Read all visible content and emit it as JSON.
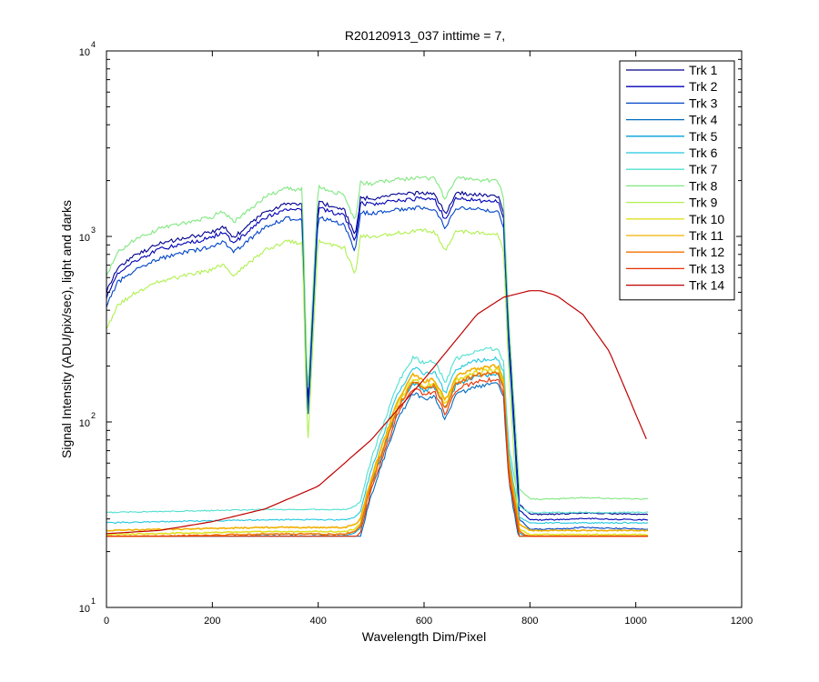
{
  "chart_data": {
    "type": "line",
    "title": "R20120913_037 inttime = 7,",
    "xlabel": "Wavelength Dim/Pixel",
    "ylabel": "Signal Intensity (ADU/pix/sec), light and darks",
    "xlim": [
      0,
      1200
    ],
    "ylim": [
      10,
      10000
    ],
    "yscale": "log",
    "grid": false,
    "legend_position": "top-right",
    "x_ticks": [
      0,
      200,
      400,
      600,
      800,
      1000,
      1200
    ],
    "x_tick_labels": [
      "0",
      "200",
      "400",
      "600",
      "800",
      "1000",
      "1200"
    ],
    "y_ticks": [
      {
        "value": 10,
        "base": "10",
        "exp": "1"
      },
      {
        "value": 100,
        "base": "10",
        "exp": "2"
      },
      {
        "value": 1000,
        "base": "10",
        "exp": "3"
      },
      {
        "value": 10000,
        "base": "10",
        "exp": "4"
      }
    ],
    "series": [
      {
        "name": "Trk 1",
        "color": "#00008f",
        "kind": "high",
        "scale": 1.2,
        "x": [
          0,
          20,
          50,
          100,
          150,
          200,
          220,
          240,
          300,
          340,
          370,
          380,
          400,
          450,
          470,
          480,
          500,
          550,
          580,
          600,
          620,
          640,
          660,
          700,
          740,
          750,
          760,
          780,
          800,
          850,
          900,
          1000,
          1025
        ],
        "y": [
          420,
          560,
          650,
          760,
          820,
          880,
          950,
          820,
          1130,
          1250,
          1230,
          95,
          1280,
          1150,
          830,
          1350,
          1330,
          1400,
          1420,
          1430,
          1410,
          1100,
          1430,
          1400,
          1370,
          1100,
          250,
          30,
          26.5,
          26.5,
          27,
          26.5,
          26.5
        ]
      },
      {
        "name": "Trk 2",
        "color": "#0000b8",
        "kind": "high",
        "scale": 1.12,
        "x": [
          0,
          20,
          50,
          100,
          150,
          200,
          220,
          240,
          300,
          340,
          370,
          380,
          400,
          450,
          470,
          480,
          500,
          550,
          580,
          600,
          620,
          640,
          660,
          700,
          740,
          750,
          760,
          780,
          800,
          850,
          900,
          1000,
          1025
        ],
        "y": [
          420,
          560,
          650,
          760,
          820,
          880,
          950,
          820,
          1130,
          1250,
          1230,
          95,
          1280,
          1150,
          830,
          1350,
          1330,
          1400,
          1420,
          1430,
          1410,
          1100,
          1430,
          1400,
          1370,
          1100,
          250,
          30,
          26.5,
          26.5,
          27,
          26.5,
          26.5
        ]
      },
      {
        "name": "Trk 3",
        "color": "#0044c8",
        "kind": "high",
        "scale": 1.0,
        "x": [
          0,
          20,
          50,
          100,
          150,
          200,
          220,
          240,
          300,
          340,
          370,
          380,
          400,
          450,
          470,
          480,
          500,
          550,
          580,
          600,
          620,
          640,
          660,
          700,
          740,
          750,
          760,
          780,
          800,
          850,
          900,
          1000,
          1025
        ],
        "y": [
          420,
          560,
          650,
          760,
          820,
          880,
          950,
          820,
          1130,
          1250,
          1230,
          95,
          1280,
          1150,
          830,
          1350,
          1330,
          1400,
          1420,
          1430,
          1410,
          1100,
          1430,
          1400,
          1370,
          1100,
          250,
          30,
          26.5,
          26.5,
          27,
          26.5,
          26.5
        ]
      },
      {
        "name": "Trk 4",
        "color": "#006cc0",
        "kind": "band",
        "scale": 0.8,
        "x": [
          0,
          300,
          380,
          450,
          470,
          480,
          500,
          550,
          580,
          600,
          620,
          640,
          660,
          700,
          740,
          750,
          760,
          780,
          800,
          1025
        ],
        "y": [
          26,
          27,
          27,
          27,
          28,
          30,
          50,
          130,
          180,
          165,
          170,
          130,
          175,
          195,
          200,
          170,
          60,
          28,
          26,
          26
        ]
      },
      {
        "name": "Trk 5",
        "color": "#00a0d8",
        "kind": "band",
        "scale": 0.9,
        "x": [
          0,
          300,
          380,
          450,
          470,
          480,
          500,
          550,
          580,
          600,
          620,
          640,
          660,
          700,
          740,
          750,
          760,
          780,
          800,
          1025
        ],
        "y": [
          26,
          27,
          27,
          27,
          28,
          30,
          50,
          130,
          180,
          165,
          170,
          130,
          175,
          195,
          200,
          170,
          60,
          28,
          26,
          26
        ]
      },
      {
        "name": "Trk 6",
        "color": "#20c8e0",
        "kind": "band",
        "scale": 1.1,
        "x": [
          0,
          300,
          380,
          450,
          470,
          480,
          500,
          550,
          580,
          600,
          620,
          640,
          660,
          700,
          740,
          750,
          760,
          780,
          800,
          1025
        ],
        "y": [
          26,
          27,
          27,
          27,
          28,
          30,
          50,
          130,
          180,
          165,
          170,
          130,
          175,
          195,
          200,
          170,
          60,
          28,
          26,
          26
        ]
      },
      {
        "name": "Trk 7",
        "color": "#50e0d0",
        "kind": "band",
        "scale": 1.25,
        "x": [
          0,
          300,
          380,
          450,
          470,
          480,
          500,
          550,
          580,
          600,
          620,
          640,
          660,
          700,
          740,
          750,
          760,
          780,
          800,
          1025
        ],
        "y": [
          26,
          27,
          27,
          27,
          28,
          30,
          50,
          130,
          180,
          165,
          170,
          130,
          175,
          195,
          200,
          170,
          60,
          28,
          26,
          26
        ]
      },
      {
        "name": "Trk 8",
        "color": "#80e880",
        "kind": "high",
        "scale": 1.45,
        "x": [
          0,
          20,
          50,
          100,
          150,
          200,
          220,
          240,
          300,
          340,
          370,
          380,
          400,
          450,
          470,
          480,
          500,
          550,
          580,
          600,
          620,
          640,
          660,
          700,
          740,
          750,
          760,
          780,
          800,
          850,
          900,
          1000,
          1025
        ],
        "y": [
          420,
          560,
          650,
          760,
          820,
          880,
          950,
          820,
          1130,
          1250,
          1230,
          95,
          1280,
          1150,
          830,
          1350,
          1330,
          1400,
          1420,
          1430,
          1410,
          1100,
          1430,
          1400,
          1370,
          1100,
          250,
          30,
          26.5,
          26.5,
          27,
          26.5,
          26.5
        ]
      },
      {
        "name": "Trk 9",
        "color": "#b0f050",
        "kind": "high",
        "scale": 0.75,
        "x": [
          0,
          20,
          50,
          100,
          150,
          200,
          220,
          240,
          300,
          340,
          370,
          380,
          400,
          450,
          470,
          480,
          500,
          550,
          580,
          600,
          620,
          640,
          660,
          700,
          740,
          750,
          760,
          780,
          800,
          850,
          900,
          1000,
          1025
        ],
        "y": [
          420,
          560,
          650,
          760,
          820,
          880,
          950,
          820,
          1130,
          1250,
          1230,
          95,
          1280,
          1150,
          830,
          1350,
          1330,
          1400,
          1420,
          1430,
          1410,
          1100,
          1430,
          1400,
          1370,
          1100,
          250,
          30,
          26.5,
          26.5,
          27,
          26.5,
          26.5
        ]
      },
      {
        "name": "Trk 10",
        "color": "#e0e020",
        "kind": "band",
        "scale": 0.95,
        "x": [
          0,
          300,
          380,
          450,
          470,
          480,
          500,
          550,
          580,
          600,
          620,
          640,
          660,
          700,
          740,
          750,
          760,
          780,
          800,
          1025
        ],
        "y": [
          26,
          27,
          27,
          27,
          28,
          30,
          50,
          130,
          180,
          165,
          170,
          130,
          175,
          195,
          200,
          170,
          60,
          28,
          26,
          26
        ]
      },
      {
        "name": "Trk 11",
        "color": "#f0b000",
        "kind": "band",
        "scale": 1.0,
        "x": [
          0,
          300,
          380,
          450,
          470,
          480,
          500,
          550,
          580,
          600,
          620,
          640,
          660,
          700,
          740,
          750,
          760,
          780,
          800,
          1025
        ],
        "y": [
          26,
          27,
          27,
          27,
          28,
          30,
          50,
          130,
          180,
          165,
          170,
          130,
          175,
          195,
          200,
          170,
          60,
          28,
          26,
          26
        ]
      },
      {
        "name": "Trk 12",
        "color": "#f07000",
        "kind": "band",
        "scale": 0.92,
        "x": [
          0,
          300,
          380,
          450,
          470,
          480,
          500,
          550,
          580,
          600,
          620,
          640,
          660,
          700,
          740,
          750,
          760,
          780,
          800,
          1025
        ],
        "y": [
          26,
          27,
          27,
          27,
          28,
          30,
          50,
          130,
          180,
          165,
          170,
          130,
          175,
          195,
          200,
          170,
          60,
          28,
          26,
          26
        ]
      },
      {
        "name": "Trk 13",
        "color": "#e83000",
        "kind": "band",
        "scale": 0.85,
        "x": [
          0,
          300,
          380,
          450,
          470,
          480,
          500,
          550,
          580,
          600,
          620,
          640,
          660,
          700,
          740,
          750,
          760,
          780,
          800,
          1025
        ],
        "y": [
          26,
          27,
          27,
          27,
          28,
          30,
          50,
          130,
          180,
          165,
          170,
          130,
          175,
          195,
          200,
          170,
          60,
          28,
          26,
          26
        ]
      },
      {
        "name": "Trk 14",
        "color": "#c00000",
        "kind": "curve",
        "scale": 1.0,
        "x": [
          0,
          100,
          200,
          300,
          400,
          500,
          600,
          700,
          750,
          800,
          820,
          850,
          900,
          950,
          1000,
          1025
        ],
        "y": [
          25,
          26,
          29,
          34,
          45,
          80,
          170,
          380,
          470,
          510,
          510,
          480,
          380,
          240,
          110,
          75
        ]
      }
    ]
  }
}
